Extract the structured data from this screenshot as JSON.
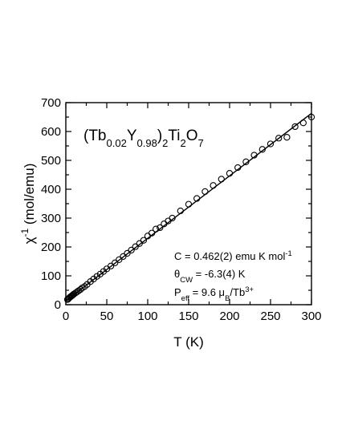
{
  "chart_data": {
    "type": "scatter",
    "title": "",
    "formula": {
      "parts": [
        {
          "text": "(Tb"
        },
        {
          "text": "0.02",
          "sub": true
        },
        {
          "text": "Y"
        },
        {
          "text": "0.98",
          "sub": true
        },
        {
          "text": ")"
        },
        {
          "text": "2",
          "sub": true
        },
        {
          "text": "Ti"
        },
        {
          "text": "2",
          "sub": true
        },
        {
          "text": "O"
        },
        {
          "text": "7",
          "sub": true
        }
      ]
    },
    "xlabel": "T (K)",
    "ylabel": {
      "parts": [
        {
          "text": "χ"
        },
        {
          "text": "-1",
          "sup": true
        },
        {
          "text": " (mol/emu)"
        }
      ]
    },
    "xlim": [
      0,
      300
    ],
    "ylim": [
      0,
      700
    ],
    "xticks": [
      0,
      50,
      100,
      150,
      200,
      250,
      300
    ],
    "yticks": [
      0,
      100,
      200,
      300,
      400,
      500,
      600,
      700
    ],
    "grid": false,
    "annotations": [
      {
        "parts": [
          {
            "text": "C = 0.462(2) emu K mol"
          },
          {
            "text": "-1",
            "sup": true
          }
        ]
      },
      {
        "parts": [
          {
            "text": "θ"
          },
          {
            "text": "CW",
            "sub": true
          },
          {
            "text": " =  -6.3(4) K"
          }
        ]
      },
      {
        "parts": [
          {
            "text": "P"
          },
          {
            "text": "eff",
            "sub": true
          },
          {
            "text": " = 9.6 μ"
          },
          {
            "text": "B",
            "sub": true
          },
          {
            "text": "/Tb"
          },
          {
            "text": "3+",
            "sup": true
          }
        ]
      }
    ],
    "series": [
      {
        "marker": "open-circle",
        "x": [
          2,
          3,
          4,
          5,
          6,
          7,
          8,
          9,
          10,
          12,
          14,
          16,
          18,
          20,
          23,
          26,
          30,
          34,
          38,
          42,
          46,
          50,
          55,
          60,
          65,
          70,
          75,
          80,
          85,
          90,
          95,
          100,
          105,
          110,
          115,
          120,
          125,
          130,
          140,
          150,
          160,
          170,
          180,
          190,
          200,
          210,
          220,
          230,
          240,
          250,
          260,
          270,
          280,
          290,
          300
        ],
        "y": [
          18,
          20,
          23,
          26,
          28,
          30,
          32,
          35,
          37,
          41,
          45,
          49,
          53,
          58,
          63,
          70,
          80,
          89,
          98,
          106,
          115,
          124,
          134,
          145,
          156,
          167,
          178,
          189,
          201,
          212,
          223,
          238,
          248,
          262,
          267,
          280,
          290,
          300,
          325,
          348,
          368,
          392,
          413,
          435,
          455,
          475,
          495,
          518,
          538,
          557,
          577,
          580,
          617,
          630,
          650
        ]
      },
      {
        "type": "line",
        "style": "fit",
        "x": [
          0,
          300
        ],
        "y": [
          13.6,
          662.9
        ]
      }
    ]
  }
}
